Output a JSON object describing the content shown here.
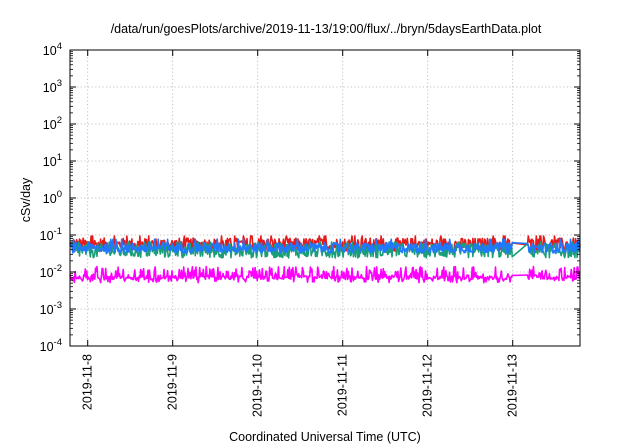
{
  "chart_data": {
    "type": "line",
    "title": "/data/run/goesPlots/archive/2019-11-13/19:00/flux/../bryn/5daysEarthData.plot",
    "xlabel": "Coordinated Universal Time (UTC)",
    "ylabel": "cSv/day",
    "y_scale": "log",
    "ylim": [
      0.0001,
      10000
    ],
    "y_ticks": [
      {
        "value": 0.0001,
        "base": "10",
        "exp": "-4"
      },
      {
        "value": 0.001,
        "base": "10",
        "exp": "-3"
      },
      {
        "value": 0.01,
        "base": "10",
        "exp": "-2"
      },
      {
        "value": 0.1,
        "base": "10",
        "exp": "-1"
      },
      {
        "value": 1,
        "base": "10",
        "exp": "0"
      },
      {
        "value": 10,
        "base": "10",
        "exp": "1"
      },
      {
        "value": 100,
        "base": "10",
        "exp": "2"
      },
      {
        "value": 1000,
        "base": "10",
        "exp": "3"
      },
      {
        "value": 10000,
        "base": "10",
        "exp": "4"
      }
    ],
    "xlim": [
      "2019-11-07 19:00",
      "2019-11-13 19:00"
    ],
    "x_ticks": [
      "2019-11-8",
      "2019-11-9",
      "2019-11-10",
      "2019-11-11",
      "2019-11-12",
      "2019-11-13"
    ],
    "grid": true,
    "gaps": [
      [
        "2019-11-13 00:00",
        "2019-11-13 04:00"
      ]
    ],
    "series": [
      {
        "color": "#e41a1c",
        "base": 0.055,
        "spread": 0.18
      },
      {
        "color": "#1a9e77",
        "base": 0.038,
        "spread": 0.2
      },
      {
        "color": "#1f78ff",
        "base": 0.045,
        "spread": 0.14
      },
      {
        "color": "#ff00ff",
        "base": 0.0085,
        "spread": 0.22,
        "drops_to": 0.007
      }
    ]
  }
}
